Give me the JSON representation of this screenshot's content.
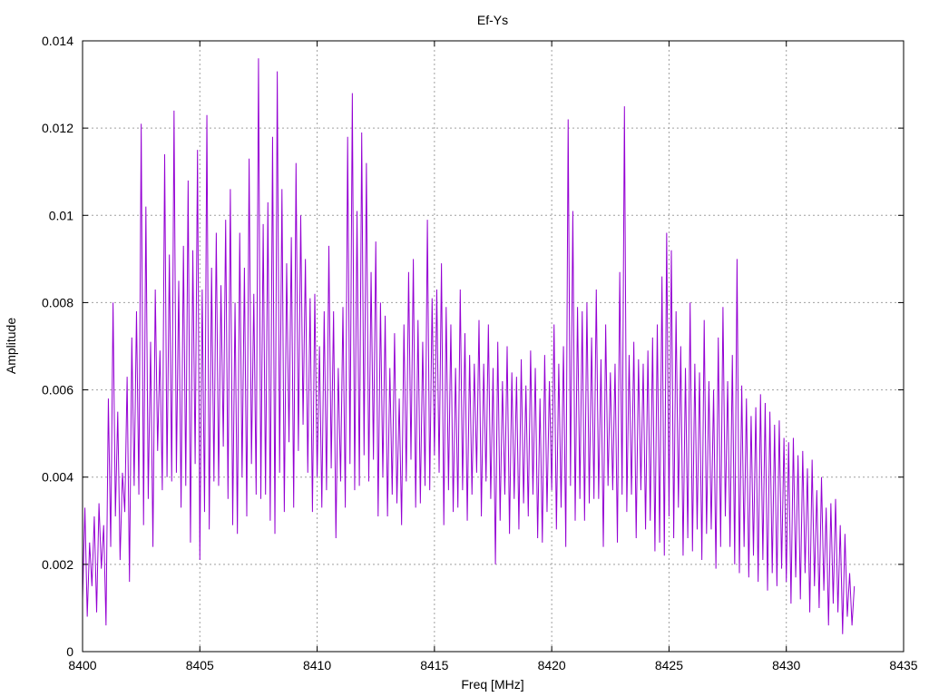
{
  "chart_data": {
    "type": "line",
    "title": "Ef-Ys",
    "xlabel": "Freq [MHz]",
    "ylabel": "Amplitude",
    "xlim": [
      8400,
      8435
    ],
    "ylim": [
      0,
      0.014
    ],
    "x_ticks": [
      "8400",
      "8405",
      "8410",
      "8415",
      "8420",
      "8425",
      "8430",
      "8435"
    ],
    "y_ticks": [
      "0",
      "0.002",
      "0.004",
      "0.006",
      "0.008",
      "0.01",
      "0.012",
      "0.014"
    ],
    "grid": true,
    "legend": "none",
    "series": [
      {
        "color": "#9400d3",
        "x_start": 8400,
        "x_step": 0.1,
        "values": [
          0.0012,
          0.0033,
          0.0008,
          0.0025,
          0.0015,
          0.0031,
          0.0009,
          0.0034,
          0.0019,
          0.0029,
          0.0006,
          0.0058,
          0.0024,
          0.008,
          0.0031,
          0.0055,
          0.0021,
          0.0041,
          0.0032,
          0.0063,
          0.0016,
          0.0072,
          0.0038,
          0.0078,
          0.0036,
          0.0121,
          0.0029,
          0.0102,
          0.0035,
          0.0071,
          0.0024,
          0.0083,
          0.0046,
          0.0069,
          0.0037,
          0.0114,
          0.004,
          0.0091,
          0.0039,
          0.0124,
          0.0041,
          0.0085,
          0.0033,
          0.0093,
          0.0038,
          0.0108,
          0.0025,
          0.0092,
          0.0043,
          0.0115,
          0.0021,
          0.0083,
          0.0032,
          0.0123,
          0.0028,
          0.0088,
          0.0039,
          0.0096,
          0.0038,
          0.0084,
          0.0047,
          0.0099,
          0.0035,
          0.0106,
          0.0029,
          0.008,
          0.0027,
          0.0096,
          0.004,
          0.0088,
          0.0031,
          0.0113,
          0.0043,
          0.0082,
          0.0036,
          0.0136,
          0.0035,
          0.0098,
          0.0036,
          0.0103,
          0.003,
          0.0118,
          0.0027,
          0.0133,
          0.0041,
          0.0106,
          0.0032,
          0.0089,
          0.0048,
          0.0095,
          0.0033,
          0.0112,
          0.0046,
          0.01,
          0.0052,
          0.009,
          0.0041,
          0.0081,
          0.0032,
          0.0082,
          0.004,
          0.007,
          0.0033,
          0.0078,
          0.0037,
          0.0093,
          0.0042,
          0.0078,
          0.0026,
          0.0065,
          0.0039,
          0.0079,
          0.0033,
          0.0118,
          0.0043,
          0.0128,
          0.0037,
          0.0101,
          0.0038,
          0.0119,
          0.0045,
          0.0112,
          0.0039,
          0.0087,
          0.0044,
          0.0094,
          0.0031,
          0.008,
          0.004,
          0.0077,
          0.0031,
          0.0065,
          0.0036,
          0.0073,
          0.0034,
          0.0058,
          0.0029,
          0.0075,
          0.0039,
          0.0087,
          0.0044,
          0.009,
          0.0033,
          0.0076,
          0.0034,
          0.0071,
          0.0038,
          0.0099,
          0.0037,
          0.0081,
          0.0045,
          0.0083,
          0.0041,
          0.0089,
          0.0029,
          0.0079,
          0.0037,
          0.0075,
          0.0032,
          0.0065,
          0.0033,
          0.0083,
          0.0037,
          0.0073,
          0.003,
          0.0068,
          0.0036,
          0.0066,
          0.0041,
          0.0076,
          0.0031,
          0.0066,
          0.0039,
          0.0075,
          0.0035,
          0.0065,
          0.002,
          0.0071,
          0.003,
          0.0062,
          0.0036,
          0.007,
          0.0027,
          0.0064,
          0.0035,
          0.0063,
          0.0028,
          0.0067,
          0.0034,
          0.0061,
          0.0031,
          0.0069,
          0.0036,
          0.0065,
          0.0026,
          0.0058,
          0.0025,
          0.0068,
          0.0032,
          0.0062,
          0.0037,
          0.0075,
          0.0028,
          0.0066,
          0.0033,
          0.007,
          0.0024,
          0.0122,
          0.0038,
          0.0101,
          0.003,
          0.0079,
          0.0035,
          0.0078,
          0.003,
          0.008,
          0.0034,
          0.0072,
          0.0035,
          0.0083,
          0.0035,
          0.0067,
          0.0024,
          0.0075,
          0.0038,
          0.0064,
          0.0037,
          0.0066,
          0.0025,
          0.0087,
          0.0036,
          0.0125,
          0.0032,
          0.0068,
          0.0036,
          0.0071,
          0.0026,
          0.0067,
          0.0037,
          0.0066,
          0.0028,
          0.0069,
          0.003,
          0.0072,
          0.0023,
          0.0075,
          0.0025,
          0.0086,
          0.0022,
          0.0096,
          0.0031,
          0.0092,
          0.0026,
          0.0078,
          0.0033,
          0.007,
          0.0022,
          0.0065,
          0.0026,
          0.008,
          0.0023,
          0.0066,
          0.0028,
          0.0064,
          0.0021,
          0.0076,
          0.0027,
          0.0062,
          0.0028,
          0.006,
          0.0019,
          0.0072,
          0.0024,
          0.0079,
          0.0031,
          0.0062,
          0.0024,
          0.0068,
          0.002,
          0.009,
          0.0018,
          0.0061,
          0.0024,
          0.0058,
          0.0017,
          0.0054,
          0.0022,
          0.0056,
          0.0016,
          0.0059,
          0.0021,
          0.0057,
          0.0014,
          0.0055,
          0.0018,
          0.0052,
          0.0015,
          0.0053,
          0.0019,
          0.0049,
          0.0016,
          0.0048,
          0.0011,
          0.0049,
          0.0017,
          0.0045,
          0.0012,
          0.0046,
          0.0018,
          0.0042,
          0.0009,
          0.0044,
          0.0015,
          0.0037,
          0.001,
          0.004,
          0.0014,
          0.0033,
          0.0006,
          0.0034,
          0.0011,
          0.0035,
          0.0009,
          0.0029,
          0.0004,
          0.0027,
          0.0008,
          0.0018,
          0.0006,
          0.0015
        ]
      }
    ]
  }
}
